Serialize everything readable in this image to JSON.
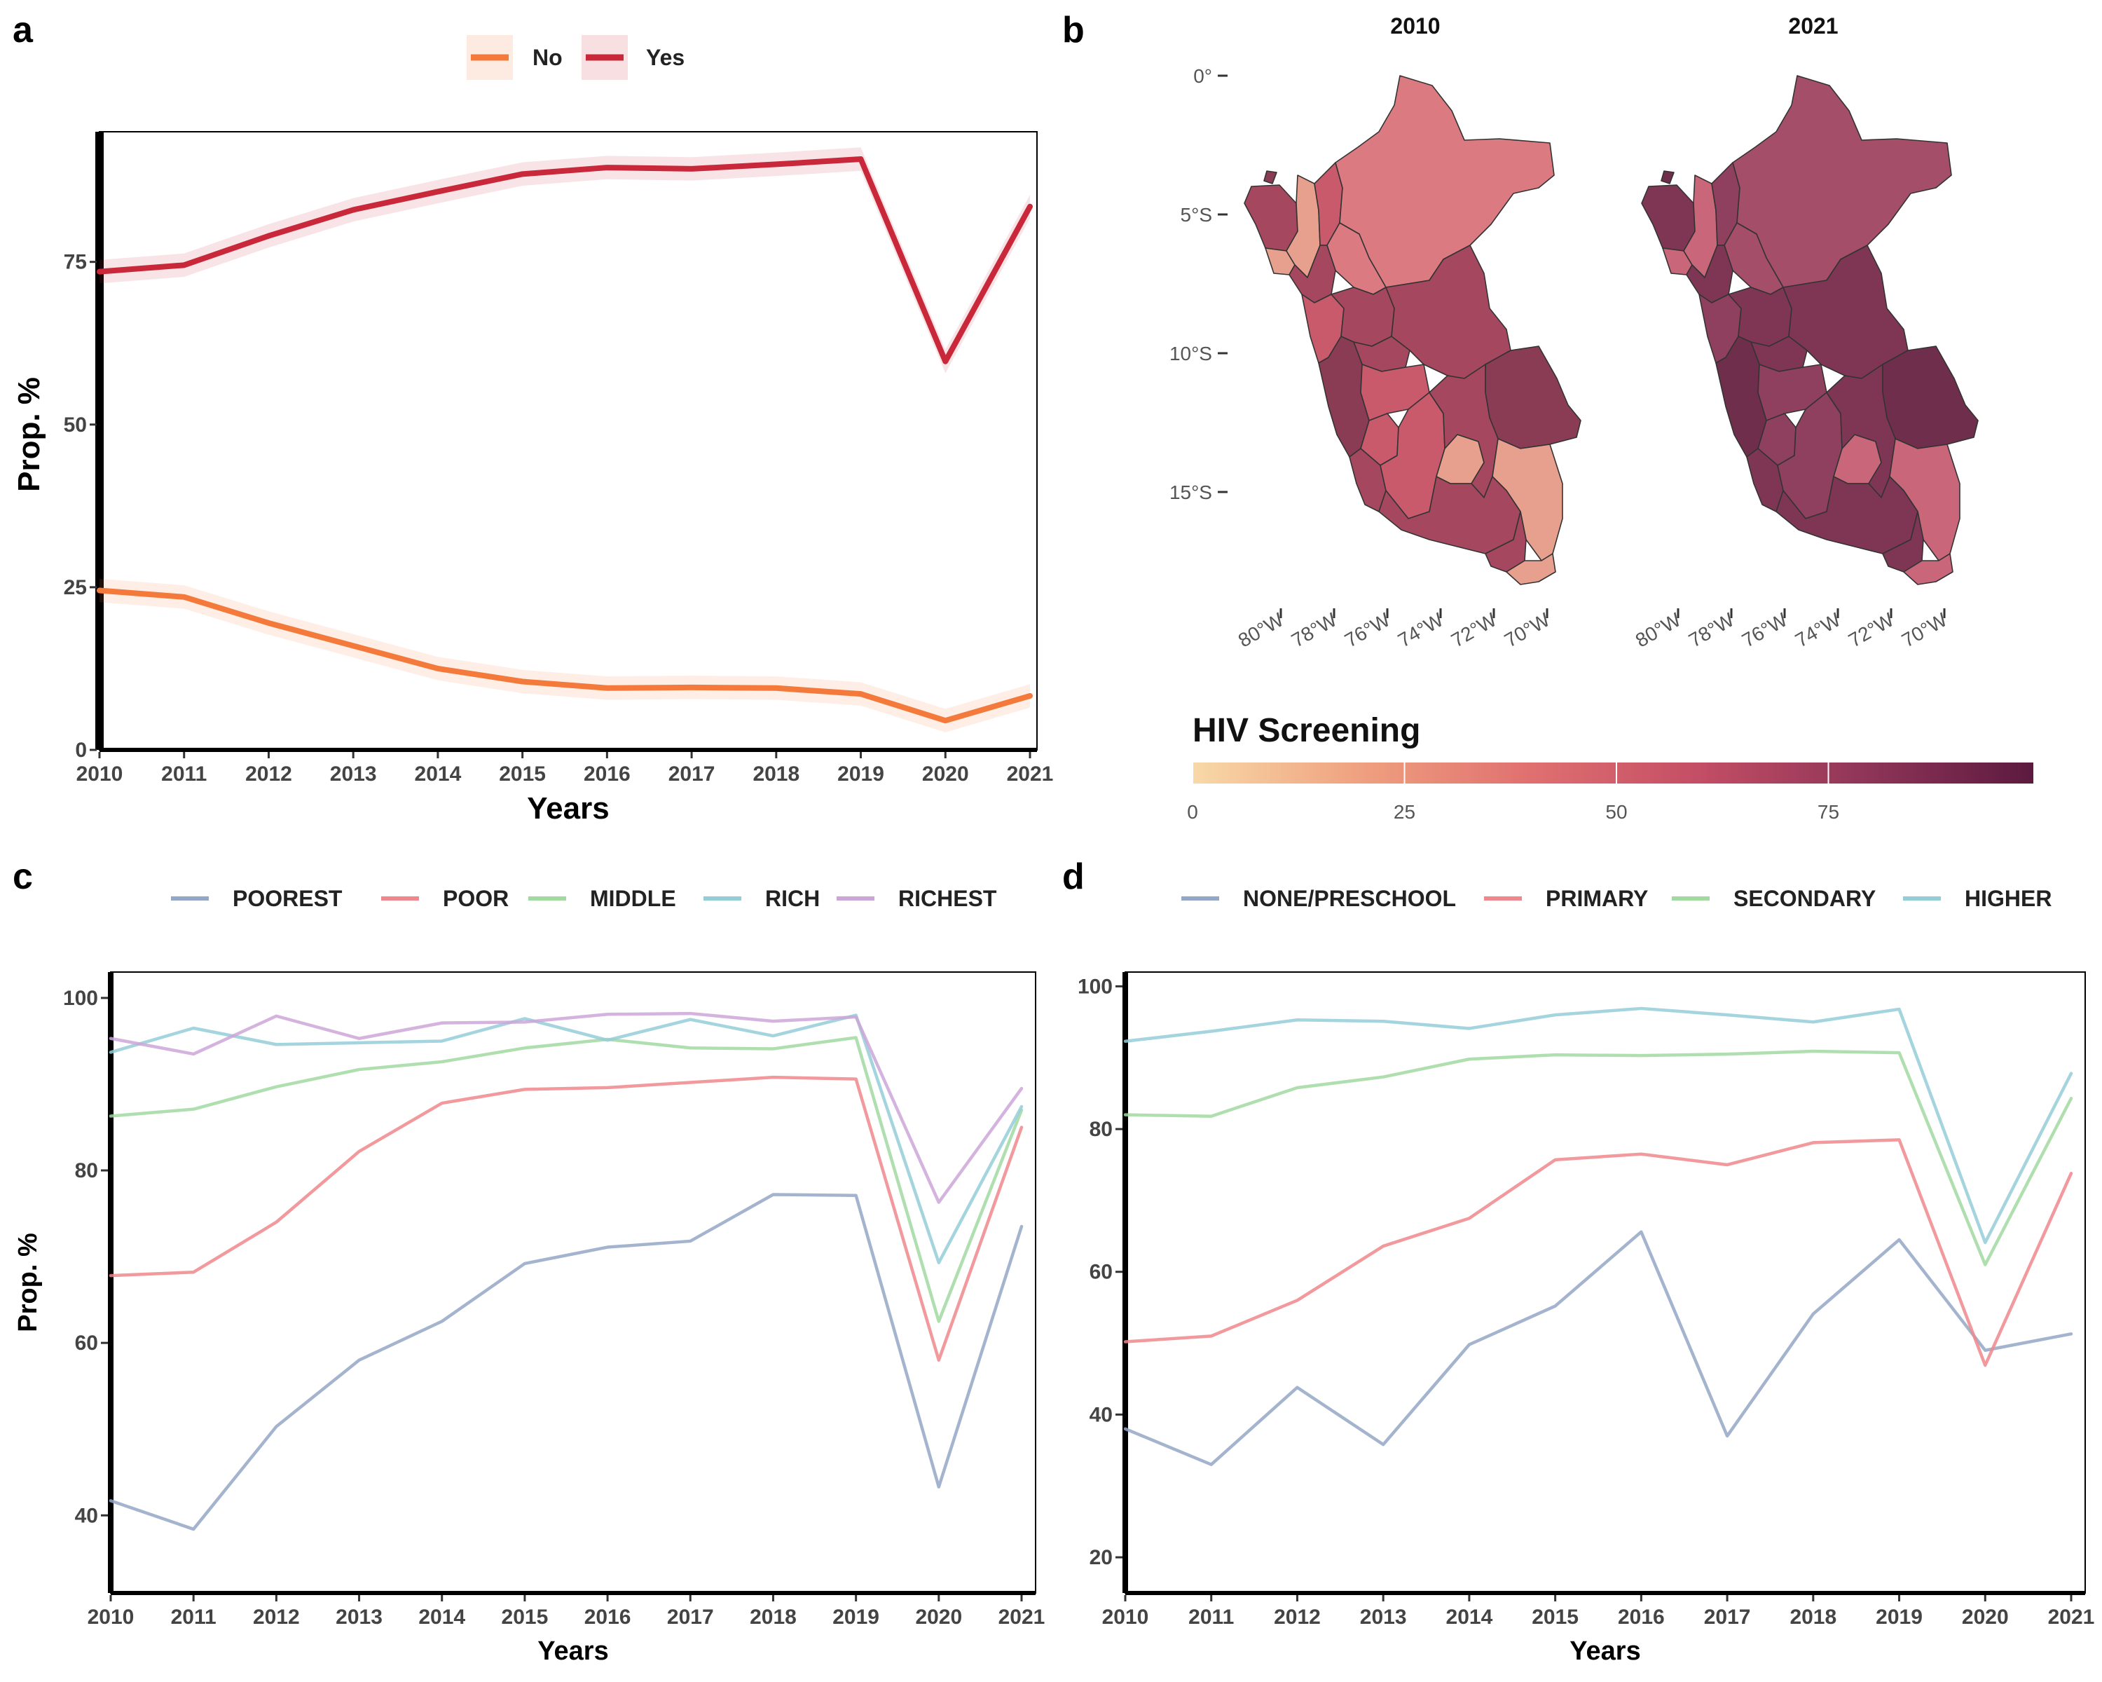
{
  "panels": {
    "a": {
      "letter": "a",
      "legend": [
        {
          "label": "No",
          "color": "#F47A3C"
        },
        {
          "label": "Yes",
          "color": "#C8283A"
        }
      ],
      "xlabel": "Years",
      "ylabel": "Prop. %"
    },
    "b": {
      "letter": "b",
      "map_titles": [
        "2010",
        "2021"
      ],
      "lat_labels": [
        "0°",
        "5°S",
        "10°S",
        "15°S"
      ],
      "lon_labels": [
        "80°W",
        "78°W",
        "76°W",
        "74°W",
        "72°W",
        "70°W"
      ],
      "colorbar": {
        "title": "HIV Screening",
        "ticks": [
          "0",
          "25",
          "50",
          "75"
        ],
        "stops": [
          "#F8D9A8",
          "#EFA07F",
          "#E07070",
          "#C44E65",
          "#8F3558",
          "#5C1A3F"
        ]
      },
      "map_fill_colors": {
        "2010": [
          "#DB7A80",
          "#C85A6C",
          "#A5485F",
          "#E8A08E",
          "#8A3C55"
        ],
        "2021": [
          "#A44E69",
          "#8F405E",
          "#7F3655",
          "#C9667A",
          "#6F2E4C"
        ]
      }
    },
    "c": {
      "letter": "c",
      "xlabel": "Years",
      "ylabel": "Prop. %"
    },
    "d": {
      "letter": "d",
      "xlabel": "Years"
    }
  },
  "chart_data": [
    {
      "id": "a",
      "type": "line",
      "x": [
        2010,
        2011,
        2012,
        2013,
        2014,
        2015,
        2016,
        2017,
        2018,
        2019,
        2020,
        2021
      ],
      "ylim": [
        0,
        95
      ],
      "yticks": [
        0,
        25,
        50,
        75
      ],
      "xlabel": "Years",
      "ylabel": "Prop. %",
      "legend_position": "top",
      "grid": false,
      "ci_band": true,
      "series": [
        {
          "name": "No",
          "color": "#F47A3C",
          "values": [
            24.5,
            23.5,
            19.5,
            16.0,
            12.5,
            10.5,
            9.5,
            9.6,
            9.5,
            8.6,
            4.5,
            8.3
          ]
        },
        {
          "name": "Yes",
          "color": "#C8283A",
          "values": [
            73.5,
            74.5,
            79.0,
            83.0,
            85.8,
            88.5,
            89.5,
            89.3,
            90.0,
            90.8,
            59.7,
            83.5
          ]
        }
      ]
    },
    {
      "id": "c",
      "type": "line",
      "x": [
        2010,
        2011,
        2012,
        2013,
        2014,
        2015,
        2016,
        2017,
        2018,
        2019,
        2020,
        2021
      ],
      "ylim": [
        31,
        103
      ],
      "yticks": [
        40,
        60,
        80,
        100
      ],
      "xlabel": "Years",
      "ylabel": "Prop. %",
      "legend_position": "top",
      "grid": false,
      "series": [
        {
          "name": "POOREST",
          "color": "#94A7C6",
          "values": [
            41.7,
            38.4,
            50.3,
            58.0,
            62.5,
            69.2,
            71.1,
            71.8,
            77.2,
            77.1,
            43.3,
            73.5
          ]
        },
        {
          "name": "POOR",
          "color": "#F0878C",
          "values": [
            67.8,
            68.2,
            74.0,
            82.2,
            87.8,
            89.4,
            89.6,
            90.2,
            90.8,
            90.6,
            58.0,
            85.0
          ]
        },
        {
          "name": "MIDDLE",
          "color": "#A2D9A1",
          "values": [
            86.3,
            87.1,
            89.7,
            91.7,
            92.6,
            94.2,
            95.2,
            94.2,
            94.1,
            95.4,
            62.5,
            87.0
          ]
        },
        {
          "name": "RICH",
          "color": "#94CDD8",
          "values": [
            93.7,
            96.5,
            94.6,
            94.8,
            95.0,
            97.6,
            95.1,
            97.5,
            95.6,
            98.0,
            69.3,
            87.4
          ]
        },
        {
          "name": "RICHEST",
          "color": "#CDA6D8",
          "values": [
            95.3,
            93.5,
            97.9,
            95.3,
            97.1,
            97.2,
            98.1,
            98.2,
            97.3,
            97.8,
            76.3,
            89.5
          ]
        }
      ]
    },
    {
      "id": "d",
      "type": "line",
      "x": [
        2010,
        2011,
        2012,
        2013,
        2014,
        2015,
        2016,
        2017,
        2018,
        2019,
        2020,
        2021
      ],
      "ylim": [
        15,
        102
      ],
      "yticks": [
        20,
        40,
        60,
        80,
        100
      ],
      "xlabel": "Years",
      "ylabel": "",
      "legend_position": "top",
      "grid": false,
      "series": [
        {
          "name": "NONE/PRESCHOOL",
          "color": "#94A7C6",
          "values": [
            38.0,
            33.0,
            43.8,
            35.8,
            49.8,
            55.2,
            65.6,
            37.0,
            54.1,
            64.5,
            49.0,
            51.3
          ]
        },
        {
          "name": "PRIMARY",
          "color": "#F0878C",
          "values": [
            50.2,
            51.0,
            56.0,
            63.6,
            67.5,
            75.7,
            76.5,
            75.0,
            78.1,
            78.5,
            46.9,
            73.8
          ]
        },
        {
          "name": "SECONDARY",
          "color": "#A2D9A1",
          "values": [
            82.0,
            81.8,
            85.8,
            87.3,
            89.8,
            90.4,
            90.3,
            90.5,
            90.9,
            90.7,
            61.0,
            84.3
          ]
        },
        {
          "name": "HIGHER",
          "color": "#94CDD8",
          "values": [
            92.3,
            93.7,
            95.3,
            95.1,
            94.1,
            96.0,
            96.9,
            96.0,
            95.0,
            96.8,
            64.1,
            87.8
          ]
        }
      ]
    }
  ]
}
